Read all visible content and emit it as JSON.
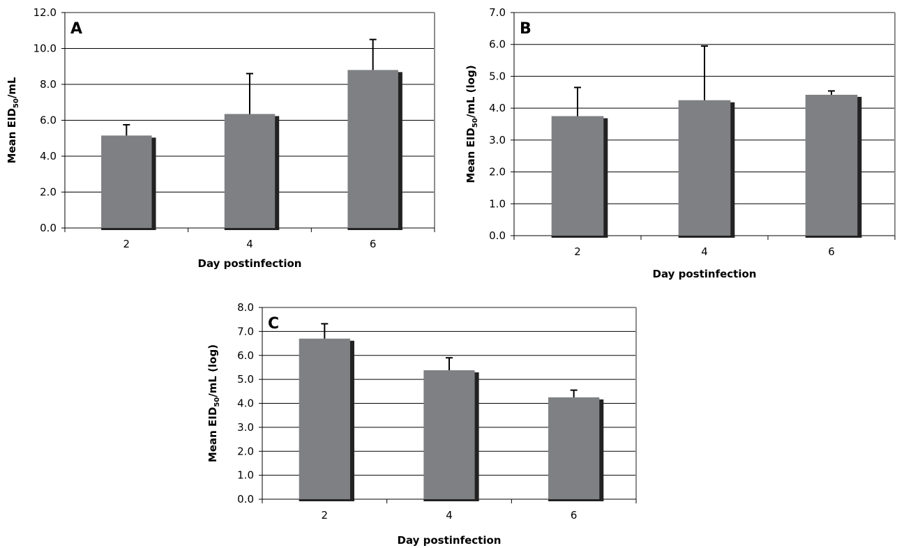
{
  "chart_data": [
    {
      "type": "bar",
      "panel_label": "A",
      "categories": [
        "2",
        "4",
        "6"
      ],
      "values": [
        5.15,
        6.35,
        8.8
      ],
      "error_plus": [
        0.6,
        2.25,
        1.7
      ],
      "xlabel": "Day postinfection",
      "ylabel_main": "Mean EID",
      "ylabel_sub": "50",
      "ylabel_tail": "/mL",
      "ylim": [
        0,
        12
      ],
      "yticks": [
        "0.0",
        "2.0",
        "4.0",
        "6.0",
        "8.0",
        "10.0",
        "12.0"
      ],
      "grid": true,
      "colors": {
        "bar": "#7f8083",
        "shadow": "#222222",
        "grid": "#000000",
        "frame": "#8c8c8c"
      }
    },
    {
      "type": "bar",
      "panel_label": "B",
      "categories": [
        "2",
        "4",
        "6"
      ],
      "values": [
        3.75,
        4.25,
        4.42
      ],
      "error_plus": [
        0.9,
        1.7,
        0.12
      ],
      "xlabel": "Day postinfection",
      "ylabel_main": "Mean EID",
      "ylabel_sub": "50",
      "ylabel_tail": "/mL (log)",
      "ylim": [
        0,
        7
      ],
      "yticks": [
        "0.0",
        "1.0",
        "2.0",
        "3.0",
        "4.0",
        "5.0",
        "6.0",
        "7.0"
      ],
      "grid": true,
      "colors": {
        "bar": "#7f8083",
        "shadow": "#222222",
        "grid": "#000000",
        "frame": "#8c8c8c"
      }
    },
    {
      "type": "bar",
      "panel_label": "C",
      "categories": [
        "2",
        "4",
        "6"
      ],
      "values": [
        6.7,
        5.38,
        4.25
      ],
      "error_plus": [
        0.62,
        0.52,
        0.3
      ],
      "xlabel": "Day postinfection",
      "ylabel_main": "Mean EID",
      "ylabel_sub": "50",
      "ylabel_tail": "/mL (log)",
      "ylim": [
        0,
        8
      ],
      "yticks": [
        "0.0",
        "1.0",
        "2.0",
        "3.0",
        "4.0",
        "5.0",
        "6.0",
        "7.0",
        "8.0"
      ],
      "grid": true,
      "colors": {
        "bar": "#7f8083",
        "shadow": "#222222",
        "grid": "#000000",
        "frame": "#8c8c8c"
      }
    }
  ]
}
